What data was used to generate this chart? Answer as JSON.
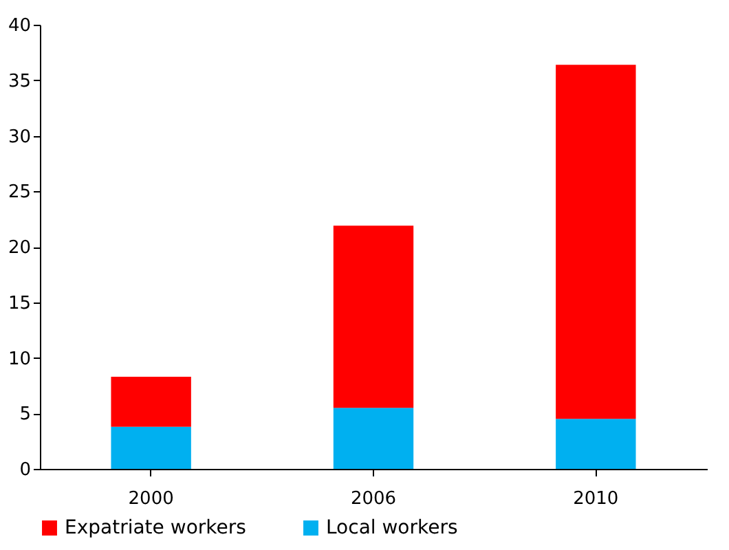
{
  "chart_data": {
    "type": "bar",
    "stacked": true,
    "categories": [
      "2000",
      "2006",
      "2010"
    ],
    "series": [
      {
        "name": "Local workers",
        "color": "#00b0f0",
        "values": [
          3.8,
          5.5,
          4.5
        ]
      },
      {
        "name": "Expatriate workers",
        "color": "#ff0000",
        "values": [
          4.5,
          16.4,
          31.9
        ]
      }
    ],
    "ylim": [
      0,
      40
    ],
    "yticks": [
      0,
      5,
      10,
      15,
      20,
      25,
      30,
      35,
      40
    ],
    "grid": false,
    "legend": "bottom"
  }
}
